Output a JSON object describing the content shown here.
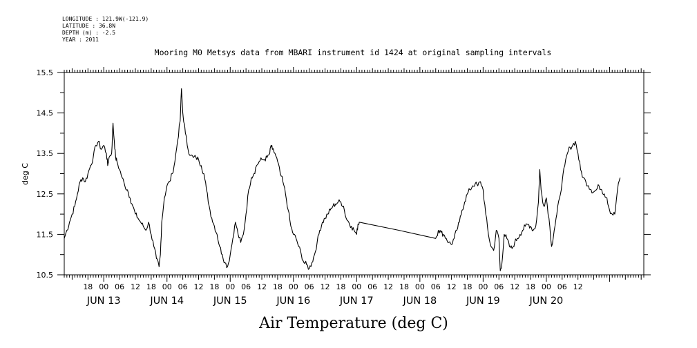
{
  "header": {
    "longitude": "LONGITUDE : 121.9W(-121.9)",
    "latitude": "LATITUDE : 36.8N",
    "depth": "DEPTH (m) : -2.5",
    "year": "YEAR : 2011"
  },
  "chart_data": {
    "type": "line",
    "title": "Mooring M0 Metsys data from MBARI instrument id 1424 at original sampling intervals",
    "xlabel": "Air Temperature (deg C)",
    "ylabel": "deg C",
    "ylim": [
      10.5,
      15.5
    ],
    "yticks": [
      "10.5",
      "11.5",
      "12.5",
      "13.5",
      "14.5",
      "15.5"
    ],
    "xlim_hours_from_jun13_00": [
      -15,
      205
    ],
    "x_tick_labels": [
      "18",
      "00",
      "06",
      "12",
      "18",
      "00",
      "06",
      "12",
      "18",
      "00",
      "06",
      "12",
      "18",
      "00",
      "06",
      "12",
      "18",
      "00",
      "06",
      "12",
      "18",
      "00",
      "06",
      "12",
      "18",
      "00",
      "06",
      "12",
      "18",
      "00",
      "06",
      "12"
    ],
    "day_labels": [
      "JUN 13",
      "JUN 14",
      "JUN 15",
      "JUN 16",
      "JUN 17",
      "JUN 18",
      "JUN 19",
      "JUN 20"
    ],
    "grid": false,
    "series": [
      {
        "color": "#000000",
        "points": [
          [
            -15.0,
            11.4
          ],
          [
            -14.0,
            11.6
          ],
          [
            -13.0,
            11.8
          ],
          [
            -12.0,
            12.0
          ],
          [
            -11.0,
            12.2
          ],
          [
            -10.0,
            12.5
          ],
          [
            -9.0,
            12.8
          ],
          [
            -8.0,
            12.9
          ],
          [
            -7.0,
            12.8
          ],
          [
            -6.0,
            13.0
          ],
          [
            -5.0,
            13.2
          ],
          [
            -4.0,
            13.4
          ],
          [
            -3.0,
            13.7
          ],
          [
            -2.0,
            13.8
          ],
          [
            -1.0,
            13.6
          ],
          [
            0.0,
            13.7
          ],
          [
            1.0,
            13.5
          ],
          [
            1.5,
            13.2
          ],
          [
            2.0,
            13.4
          ],
          [
            3.0,
            13.5
          ],
          [
            3.5,
            14.25
          ],
          [
            4.0,
            13.8
          ],
          [
            4.5,
            13.4
          ],
          [
            5.0,
            13.3
          ],
          [
            6.0,
            13.1
          ],
          [
            7.0,
            12.9
          ],
          [
            8.0,
            12.7
          ],
          [
            9.0,
            12.6
          ],
          [
            10.0,
            12.4
          ],
          [
            11.0,
            12.2
          ],
          [
            12.0,
            12.0
          ],
          [
            13.0,
            11.9
          ],
          [
            14.0,
            11.8
          ],
          [
            15.0,
            11.7
          ],
          [
            16.0,
            11.6
          ],
          [
            17.0,
            11.8
          ],
          [
            18.0,
            11.5
          ],
          [
            19.0,
            11.2
          ],
          [
            20.0,
            10.9
          ],
          [
            21.0,
            10.7
          ],
          [
            21.5,
            11.0
          ],
          [
            22.0,
            11.8
          ],
          [
            23.0,
            12.4
          ],
          [
            24.0,
            12.7
          ],
          [
            25.0,
            12.8
          ],
          [
            26.0,
            13.0
          ],
          [
            27.0,
            13.3
          ],
          [
            28.0,
            13.8
          ],
          [
            29.0,
            14.3
          ],
          [
            29.5,
            15.1
          ],
          [
            30.0,
            14.5
          ],
          [
            31.0,
            14.0
          ],
          [
            32.0,
            13.6
          ],
          [
            33.0,
            13.45
          ],
          [
            34.0,
            13.4
          ],
          [
            35.0,
            13.4
          ],
          [
            36.0,
            13.35
          ],
          [
            37.0,
            13.2
          ],
          [
            38.0,
            13.0
          ],
          [
            39.0,
            12.6
          ],
          [
            40.0,
            12.2
          ],
          [
            41.0,
            11.9
          ],
          [
            42.0,
            11.7
          ],
          [
            43.0,
            11.5
          ],
          [
            44.0,
            11.2
          ],
          [
            45.0,
            11.0
          ],
          [
            46.0,
            10.8
          ],
          [
            47.0,
            10.7
          ],
          [
            48.0,
            11.0
          ],
          [
            49.0,
            11.4
          ],
          [
            50.0,
            11.8
          ],
          [
            51.0,
            11.5
          ],
          [
            52.0,
            11.3
          ],
          [
            53.0,
            11.5
          ],
          [
            54.0,
            12.0
          ],
          [
            55.0,
            12.6
          ],
          [
            56.0,
            12.9
          ],
          [
            57.0,
            13.0
          ],
          [
            58.0,
            13.2
          ],
          [
            59.0,
            13.3
          ],
          [
            60.0,
            13.35
          ],
          [
            61.0,
            13.35
          ],
          [
            62.0,
            13.4
          ],
          [
            63.0,
            13.5
          ],
          [
            63.5,
            13.7
          ],
          [
            64.0,
            13.6
          ],
          [
            65.0,
            13.5
          ],
          [
            66.0,
            13.3
          ],
          [
            67.0,
            13.0
          ],
          [
            68.0,
            12.8
          ],
          [
            69.0,
            12.5
          ],
          [
            70.0,
            12.1
          ],
          [
            71.0,
            11.7
          ],
          [
            72.0,
            11.5
          ],
          [
            73.0,
            11.4
          ],
          [
            74.0,
            11.2
          ],
          [
            75.0,
            11.0
          ],
          [
            76.0,
            10.8
          ],
          [
            77.0,
            10.75
          ],
          [
            78.0,
            10.65
          ],
          [
            79.0,
            10.8
          ],
          [
            80.0,
            11.0
          ],
          [
            81.0,
            11.3
          ],
          [
            82.0,
            11.6
          ],
          [
            83.0,
            11.8
          ],
          [
            84.0,
            11.9
          ],
          [
            85.0,
            12.0
          ],
          [
            86.0,
            12.1
          ],
          [
            87.0,
            12.2
          ],
          [
            88.0,
            12.25
          ],
          [
            89.0,
            12.3
          ],
          [
            90.0,
            12.3
          ],
          [
            91.0,
            12.2
          ],
          [
            92.0,
            11.9
          ],
          [
            93.0,
            11.8
          ],
          [
            94.0,
            11.7
          ],
          [
            95.0,
            11.6
          ],
          [
            96.0,
            11.5
          ],
          [
            96.5,
            11.75
          ],
          [
            97.0,
            11.8
          ],
          [
            112.0,
            11.6
          ],
          [
            126.0,
            11.4
          ],
          [
            127.0,
            11.6
          ],
          [
            128.0,
            11.55
          ],
          [
            129.0,
            11.5
          ],
          [
            130.0,
            11.4
          ],
          [
            131.0,
            11.3
          ],
          [
            132.0,
            11.25
          ],
          [
            133.0,
            11.4
          ],
          [
            134.0,
            11.6
          ],
          [
            135.0,
            11.8
          ],
          [
            136.0,
            12.1
          ],
          [
            137.0,
            12.3
          ],
          [
            138.0,
            12.5
          ],
          [
            139.0,
            12.6
          ],
          [
            140.0,
            12.7
          ],
          [
            141.0,
            12.75
          ],
          [
            142.0,
            12.7
          ],
          [
            143.0,
            12.8
          ],
          [
            144.0,
            12.6
          ],
          [
            145.0,
            12.0
          ],
          [
            146.0,
            11.5
          ],
          [
            147.0,
            11.2
          ],
          [
            148.0,
            11.1
          ],
          [
            149.0,
            11.6
          ],
          [
            150.0,
            11.4
          ],
          [
            150.5,
            10.6
          ],
          [
            151.0,
            10.7
          ],
          [
            152.0,
            11.5
          ],
          [
            153.0,
            11.4
          ],
          [
            154.0,
            11.2
          ],
          [
            155.0,
            11.15
          ],
          [
            156.0,
            11.3
          ],
          [
            157.0,
            11.4
          ],
          [
            158.0,
            11.5
          ],
          [
            159.0,
            11.6
          ],
          [
            160.0,
            11.7
          ],
          [
            161.0,
            11.75
          ],
          [
            162.0,
            11.7
          ],
          [
            163.0,
            11.6
          ],
          [
            164.0,
            11.7
          ],
          [
            165.0,
            12.3
          ],
          [
            165.5,
            13.1
          ],
          [
            166.0,
            12.6
          ],
          [
            167.0,
            12.2
          ],
          [
            168.0,
            12.4
          ],
          [
            169.0,
            11.9
          ],
          [
            170.0,
            11.2
          ],
          [
            171.0,
            11.6
          ],
          [
            172.0,
            12.0
          ],
          [
            173.0,
            12.4
          ],
          [
            174.0,
            12.8
          ],
          [
            175.0,
            13.2
          ],
          [
            176.0,
            13.5
          ],
          [
            177.0,
            13.65
          ],
          [
            178.0,
            13.7
          ],
          [
            179.0,
            13.8
          ],
          [
            180.0,
            13.5
          ],
          [
            181.0,
            13.1
          ],
          [
            182.0,
            12.9
          ],
          [
            183.0,
            12.8
          ],
          [
            184.0,
            12.7
          ],
          [
            185.0,
            12.6
          ],
          [
            186.0,
            12.55
          ],
          [
            187.0,
            12.6
          ],
          [
            188.0,
            12.7
          ],
          [
            189.0,
            12.6
          ],
          [
            190.0,
            12.5
          ],
          [
            191.0,
            12.4
          ],
          [
            192.0,
            12.1
          ],
          [
            193.0,
            12.0
          ],
          [
            194.0,
            12.0
          ],
          [
            195.0,
            12.6
          ],
          [
            196.0,
            12.9
          ]
        ]
      }
    ]
  }
}
